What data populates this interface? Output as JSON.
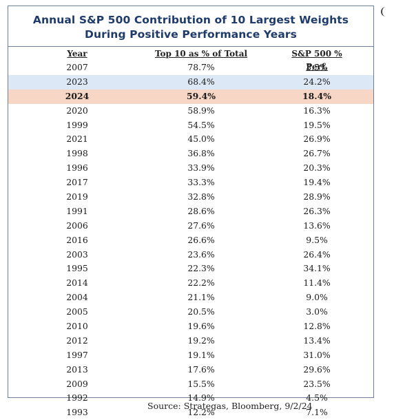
{
  "table": {
    "title_line1": "Annual S&P 500 Contribution of 10 Largest Weights",
    "title_line2": "During Positive Performance Years",
    "headers": {
      "year": "Year",
      "top10": "Top 10 as % of Total",
      "perf": "S&P 500 % Perf."
    },
    "rows": [
      {
        "year": "2007",
        "top10": "78.7%",
        "perf": "3.5%"
      },
      {
        "year": "2023",
        "top10": "68.4%",
        "perf": "24.2%"
      },
      {
        "year": "2024",
        "top10": "59.4%",
        "perf": "18.4%"
      },
      {
        "year": "2020",
        "top10": "58.9%",
        "perf": "16.3%"
      },
      {
        "year": "1999",
        "top10": "54.5%",
        "perf": "19.5%"
      },
      {
        "year": "2021",
        "top10": "45.0%",
        "perf": "26.9%"
      },
      {
        "year": "1998",
        "top10": "36.8%",
        "perf": "26.7%"
      },
      {
        "year": "1996",
        "top10": "33.9%",
        "perf": "20.3%"
      },
      {
        "year": "2017",
        "top10": "33.3%",
        "perf": "19.4%"
      },
      {
        "year": "2019",
        "top10": "32.8%",
        "perf": "28.9%"
      },
      {
        "year": "1991",
        "top10": "28.6%",
        "perf": "26.3%"
      },
      {
        "year": "2006",
        "top10": "27.6%",
        "perf": "13.6%"
      },
      {
        "year": "2016",
        "top10": "26.6%",
        "perf": "9.5%"
      },
      {
        "year": "2003",
        "top10": "23.6%",
        "perf": "26.4%"
      },
      {
        "year": "1995",
        "top10": "22.3%",
        "perf": "34.1%"
      },
      {
        "year": "2014",
        "top10": "22.2%",
        "perf": "11.4%"
      },
      {
        "year": "2004",
        "top10": "21.1%",
        "perf": "9.0%"
      },
      {
        "year": "2005",
        "top10": "20.5%",
        "perf": "3.0%"
      },
      {
        "year": "2010",
        "top10": "19.6%",
        "perf": "12.8%"
      },
      {
        "year": "2012",
        "top10": "19.2%",
        "perf": "13.4%"
      },
      {
        "year": "1997",
        "top10": "19.1%",
        "perf": "31.0%"
      },
      {
        "year": "2013",
        "top10": "17.6%",
        "perf": "29.6%"
      },
      {
        "year": "2009",
        "top10": "15.5%",
        "perf": "23.5%"
      },
      {
        "year": "1992",
        "top10": "14.9%",
        "perf": "4.5%"
      },
      {
        "year": "1993",
        "top10": "12.2%",
        "perf": "7.1%"
      }
    ],
    "highlight": {
      "blue_year": "2023",
      "peach_year": "2024",
      "blue_color": "#dde8f6",
      "peach_color": "#f8d6c6"
    },
    "source": "Source: Strategas, Bloomberg, 9/2/24"
  }
}
